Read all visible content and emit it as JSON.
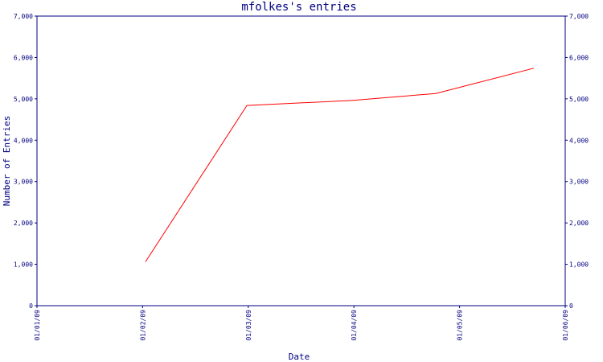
{
  "chart_data": {
    "type": "line",
    "title": "mfolkes's entries",
    "xlabel": "Date",
    "ylabel": "Number of Entries",
    "x_ticks": [
      "01/01/09",
      "01/02/09",
      "01/03/09",
      "01/04/09",
      "01/05/09",
      "01/06/09"
    ],
    "y_ticks": [
      "0",
      "1,000",
      "2,000",
      "3,000",
      "4,000",
      "5,000",
      "6,000",
      "7,000"
    ],
    "ylim": [
      0,
      7000
    ],
    "xlim": [
      "2009-01-01",
      "2009-06-01"
    ],
    "grid": false,
    "colors": {
      "axis": "#000080",
      "series": "#ff0000"
    },
    "series": [
      {
        "x": [
          "2009-02-01",
          "2009-03-02",
          "2009-04-01",
          "2009-04-25",
          "2009-05-23"
        ],
        "values": [
          1060,
          4840,
          4960,
          5130,
          5740
        ]
      }
    ]
  }
}
